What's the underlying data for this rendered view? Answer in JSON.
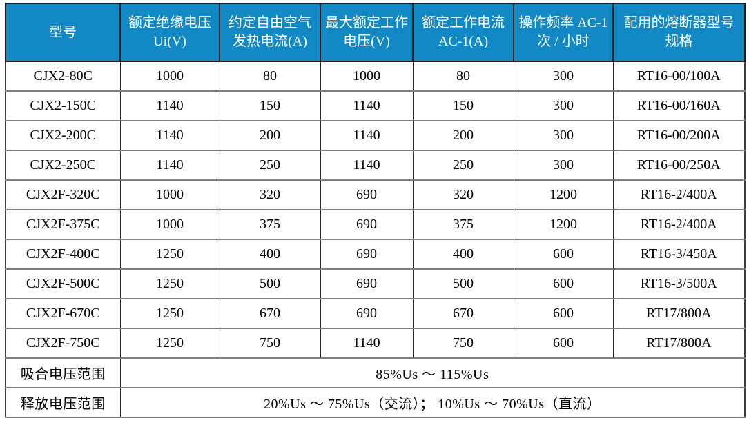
{
  "colors": {
    "header_bg": "#1289c4",
    "header_text": "#ffffff",
    "grid_horizontal": "#7f7f7f",
    "grid_vertical": "#262626",
    "outer_border": "#3d3d3d",
    "body_text": "#000000"
  },
  "table": {
    "columns": [
      {
        "label": "型号"
      },
      {
        "label": "额定绝缘电压 Ui(V)"
      },
      {
        "label": "约定自由空气发热电流(A)"
      },
      {
        "label": "最大额定工作电压(V)"
      },
      {
        "label": "额定工作电流 AC-1(A)"
      },
      {
        "label": "操作频率 AC-1 次 / 小时"
      },
      {
        "label": "配用的熔断器型号规格"
      }
    ],
    "rows": [
      [
        "CJX2-80C",
        "1000",
        "80",
        "1000",
        "80",
        "300",
        "RT16-00/100A"
      ],
      [
        "CJX2-150C",
        "1140",
        "150",
        "1140",
        "150",
        "300",
        "RT16-00/160A"
      ],
      [
        "CJX2-200C",
        "1140",
        "200",
        "1140",
        "200",
        "300",
        "RT16-00/200A"
      ],
      [
        "CJX2-250C",
        "1140",
        "250",
        "1140",
        "250",
        "300",
        "RT16-00/250A"
      ],
      [
        "CJX2F-320C",
        "1000",
        "320",
        "690",
        "320",
        "1200",
        "RT16-2/400A"
      ],
      [
        "CJX2F-375C",
        "1000",
        "375",
        "690",
        "375",
        "1200",
        "RT16-2/400A"
      ],
      [
        "CJX2F-400C",
        "1250",
        "400",
        "690",
        "400",
        "600",
        "RT16-3/450A"
      ],
      [
        "CJX2F-500C",
        "1250",
        "500",
        "690",
        "500",
        "600",
        "RT16-3/500A"
      ],
      [
        "CJX2F-670C",
        "1250",
        "670",
        "690",
        "670",
        "600",
        "RT17/800A"
      ],
      [
        "CJX2F-750C",
        "1250",
        "750",
        "1140",
        "750",
        "600",
        "RT17/800A"
      ]
    ],
    "footer_rows": [
      {
        "label": "吸合电压范围",
        "value": "85%Us ～ 115%Us"
      },
      {
        "label": "释放电压范围",
        "value": "20%Us ～ 75%Us（交流）； 10%Us ～ 70%Us（直流）"
      }
    ]
  }
}
